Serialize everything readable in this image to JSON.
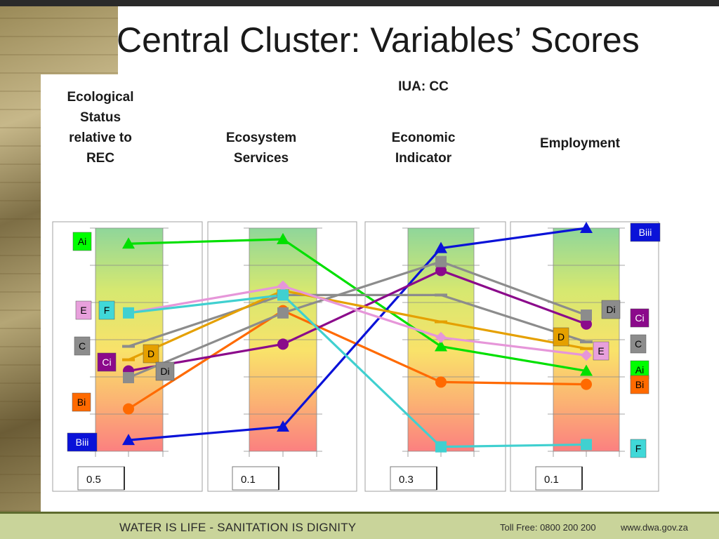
{
  "slide": {
    "title": "Central Cluster: Variables’ Scores",
    "footer_slogan": "WATER IS LIFE - SANITATION IS DIGNITY",
    "footer_toll": "Toll Free: 0800 200 200",
    "footer_web": "www.dwa.gov.za"
  },
  "chart_data": {
    "type": "line",
    "subtitle": "IUA: CC",
    "axis_headers": [
      "Ecological\nStatus\nrelative to\nREC",
      "Ecosystem\nServices",
      "Economic\nIndicator",
      "Employment"
    ],
    "axis_weights": [
      "0.5",
      "0.1",
      "0.3",
      "0.1"
    ],
    "grid": true,
    "y_scale": [
      0,
      1
    ],
    "series": [
      {
        "name": "Ai",
        "color": "#00e000",
        "marker": "triangle",
        "values": [
          0.93,
          0.95,
          0.47,
          0.36
        ]
      },
      {
        "name": "Bi",
        "color": "#ff6a00",
        "marker": "circle",
        "values": [
          0.19,
          0.63,
          0.31,
          0.3
        ]
      },
      {
        "name": "Biii",
        "color": "#0a12d8",
        "marker": "triangle",
        "values": [
          0.05,
          0.11,
          0.91,
          1.0
        ]
      },
      {
        "name": "C",
        "color": "#8c8c8c",
        "marker": "none",
        "values": [
          0.47,
          0.7,
          0.7,
          0.49
        ]
      },
      {
        "name": "Ci",
        "color": "#8b0a8b",
        "marker": "circle",
        "values": [
          0.36,
          0.48,
          0.81,
          0.57
        ]
      },
      {
        "name": "D",
        "color": "#e5a000",
        "marker": "none",
        "values": [
          0.41,
          0.72,
          0.58,
          0.46
        ]
      },
      {
        "name": "Di",
        "color": "#8c8c8c",
        "marker": "square",
        "values": [
          0.33,
          0.62,
          0.85,
          0.61
        ]
      },
      {
        "name": "E",
        "color": "#e696d9",
        "marker": "diamond",
        "values": [
          0.62,
          0.74,
          0.51,
          0.43
        ]
      },
      {
        "name": "F",
        "color": "#40d0d0",
        "marker": "square",
        "values": [
          0.62,
          0.7,
          0.02,
          0.03
        ]
      }
    ],
    "left_labels": [
      {
        "text": "Ai",
        "bg": "#00ff00",
        "fg": "#000000"
      },
      {
        "text": "E",
        "bg": "#e8a0dc",
        "fg": "#000000"
      },
      {
        "text": "F",
        "bg": "#40d8d8",
        "fg": "#000000"
      },
      {
        "text": "C",
        "bg": "#8c8c8c",
        "fg": "#000000"
      },
      {
        "text": "Ci",
        "bg": "#8b0a8b",
        "fg": "#ffffff"
      },
      {
        "text": "D",
        "bg": "#e5a000",
        "fg": "#000000"
      },
      {
        "text": "Di",
        "bg": "#8c8c8c",
        "fg": "#000000"
      },
      {
        "text": "Bi",
        "bg": "#ff6a00",
        "fg": "#000000"
      },
      {
        "text": "Biii",
        "bg": "#0a12d8",
        "fg": "#ffffff"
      }
    ],
    "right_labels": [
      {
        "text": "Biii",
        "bg": "#0a12d8",
        "fg": "#ffffff"
      },
      {
        "text": "Di",
        "bg": "#8c8c8c",
        "fg": "#000000"
      },
      {
        "text": "Ci",
        "bg": "#8b0a8b",
        "fg": "#ffffff"
      },
      {
        "text": "D",
        "bg": "#e5a000",
        "fg": "#000000"
      },
      {
        "text": "C",
        "bg": "#8c8c8c",
        "fg": "#000000"
      },
      {
        "text": "E",
        "bg": "#e8a0dc",
        "fg": "#000000"
      },
      {
        "text": "Ai",
        "bg": "#00ff00",
        "fg": "#000000"
      },
      {
        "text": "Bi",
        "bg": "#ff6a00",
        "fg": "#000000"
      },
      {
        "text": "F",
        "bg": "#40d8d8",
        "fg": "#000000"
      }
    ]
  }
}
